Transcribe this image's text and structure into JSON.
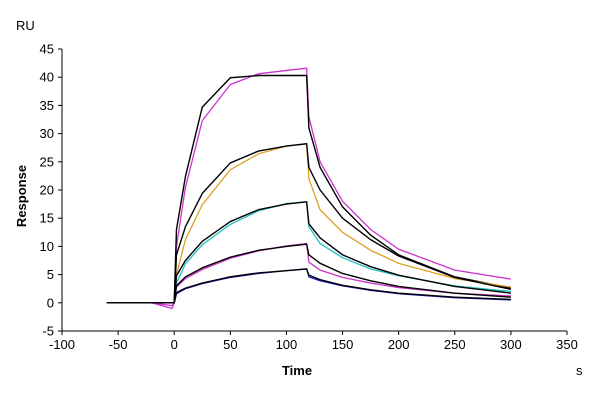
{
  "chart_data": {
    "type": "line",
    "xlabel": "Time",
    "ylabel": "Response",
    "x_unit": "s",
    "y_unit": "RU",
    "xlim": [
      -100,
      350
    ],
    "ylim": [
      -5,
      45
    ],
    "x_ticks": [
      -100,
      -50,
      0,
      50,
      100,
      150,
      200,
      250,
      300,
      350
    ],
    "y_ticks": [
      -5,
      0,
      5,
      10,
      15,
      20,
      25,
      30,
      35,
      40,
      45
    ],
    "grid": false,
    "legend": "none",
    "series": [
      {
        "color": "#cc33cc",
        "role": "measured",
        "x": [
          -60,
          -20,
          -2,
          0,
          2,
          10,
          25,
          50,
          75,
          100,
          118,
          120,
          130,
          150,
          175,
          200,
          250,
          300
        ],
        "y": [
          0,
          0,
          -0.5,
          0,
          10,
          20.5,
          32.3,
          38.7,
          40.6,
          41.2,
          41.6,
          33,
          25,
          18,
          13,
          9.5,
          5.8,
          4.2
        ]
      },
      {
        "color": "#000000",
        "role": "fit",
        "x": [
          -60,
          -20,
          0,
          2,
          10,
          25,
          50,
          75,
          100,
          118,
          120,
          130,
          150,
          175,
          200,
          250,
          300
        ],
        "y": [
          0,
          0,
          0,
          13,
          22.4,
          34.7,
          39.9,
          40.3,
          40.3,
          40.3,
          31,
          24,
          17,
          12,
          8.5,
          4.6,
          2.6
        ]
      },
      {
        "color": "#e0a020",
        "role": "measured",
        "x": [
          -60,
          -20,
          0,
          2,
          10,
          25,
          50,
          75,
          100,
          118,
          120,
          130,
          150,
          175,
          200,
          250,
          300
        ],
        "y": [
          0,
          0,
          0,
          5,
          11.2,
          17.4,
          23.6,
          26.4,
          27.8,
          28.2,
          22,
          16.5,
          12.5,
          9.3,
          7,
          4.3,
          2.8
        ]
      },
      {
        "color": "#000000",
        "role": "fit",
        "x": [
          -60,
          -20,
          0,
          2,
          10,
          25,
          50,
          75,
          100,
          118,
          120,
          130,
          150,
          175,
          200,
          250,
          300
        ],
        "y": [
          0,
          0,
          0,
          8.5,
          13.5,
          19.4,
          24.8,
          26.9,
          27.8,
          28.2,
          24,
          20,
          15,
          11.2,
          8.3,
          4.5,
          2.4
        ]
      },
      {
        "color": "#20c0c0",
        "role": "measured",
        "x": [
          -60,
          -20,
          0,
          2,
          10,
          25,
          50,
          75,
          100,
          118,
          120,
          130,
          150,
          175,
          200,
          250,
          300
        ],
        "y": [
          0,
          0,
          0,
          3.5,
          6.9,
          10.3,
          13.9,
          16.3,
          17.6,
          17.9,
          13.5,
          10.5,
          8,
          6,
          4.8,
          3,
          2
        ]
      },
      {
        "color": "#000000",
        "role": "fit",
        "x": [
          -60,
          -20,
          0,
          2,
          10,
          25,
          50,
          75,
          100,
          118,
          120,
          130,
          150,
          175,
          200,
          250,
          300
        ],
        "y": [
          0,
          0,
          0,
          4.8,
          7.5,
          10.9,
          14.4,
          16.5,
          17.5,
          17.9,
          14,
          11.5,
          8.5,
          6.4,
          4.9,
          2.9,
          1.7
        ]
      },
      {
        "color": "#cc33cc",
        "role": "measured",
        "x": [
          -60,
          -20,
          -2,
          0,
          2,
          10,
          25,
          50,
          75,
          100,
          118,
          120,
          130,
          150,
          175,
          200,
          250,
          300
        ],
        "y": [
          0,
          0,
          -1,
          0,
          2.8,
          4.3,
          5.9,
          7.9,
          9.2,
          10.1,
          10.5,
          7.2,
          5.8,
          4.5,
          3.5,
          2.7,
          1.7,
          1.2
        ]
      },
      {
        "color": "#000000",
        "role": "fit",
        "x": [
          -60,
          -20,
          0,
          2,
          10,
          25,
          50,
          75,
          100,
          118,
          120,
          130,
          150,
          175,
          200,
          250,
          300
        ],
        "y": [
          0,
          0,
          0,
          3,
          4.6,
          6.2,
          8.1,
          9.3,
          10,
          10.4,
          8.5,
          7,
          5.2,
          3.9,
          2.9,
          1.7,
          1
        ]
      },
      {
        "color": "#1a1ad0",
        "role": "measured",
        "x": [
          -60,
          -20,
          0,
          2,
          10,
          25,
          50,
          75,
          100,
          118,
          120,
          130,
          150,
          175,
          200,
          250,
          300
        ],
        "y": [
          0,
          0,
          0,
          1.6,
          2.5,
          3.4,
          4.5,
          5.2,
          5.7,
          6,
          4.6,
          3.9,
          3,
          2.2,
          1.6,
          0.9,
          0.5
        ]
      },
      {
        "color": "#000000",
        "role": "fit",
        "x": [
          -60,
          -20,
          0,
          2,
          10,
          25,
          50,
          75,
          100,
          118,
          120,
          130,
          150,
          175,
          200,
          250,
          300
        ],
        "y": [
          0,
          0,
          0,
          1.8,
          2.6,
          3.5,
          4.6,
          5.3,
          5.7,
          6,
          4.9,
          4.1,
          3.1,
          2.3,
          1.7,
          1,
          0.6
        ]
      }
    ]
  }
}
